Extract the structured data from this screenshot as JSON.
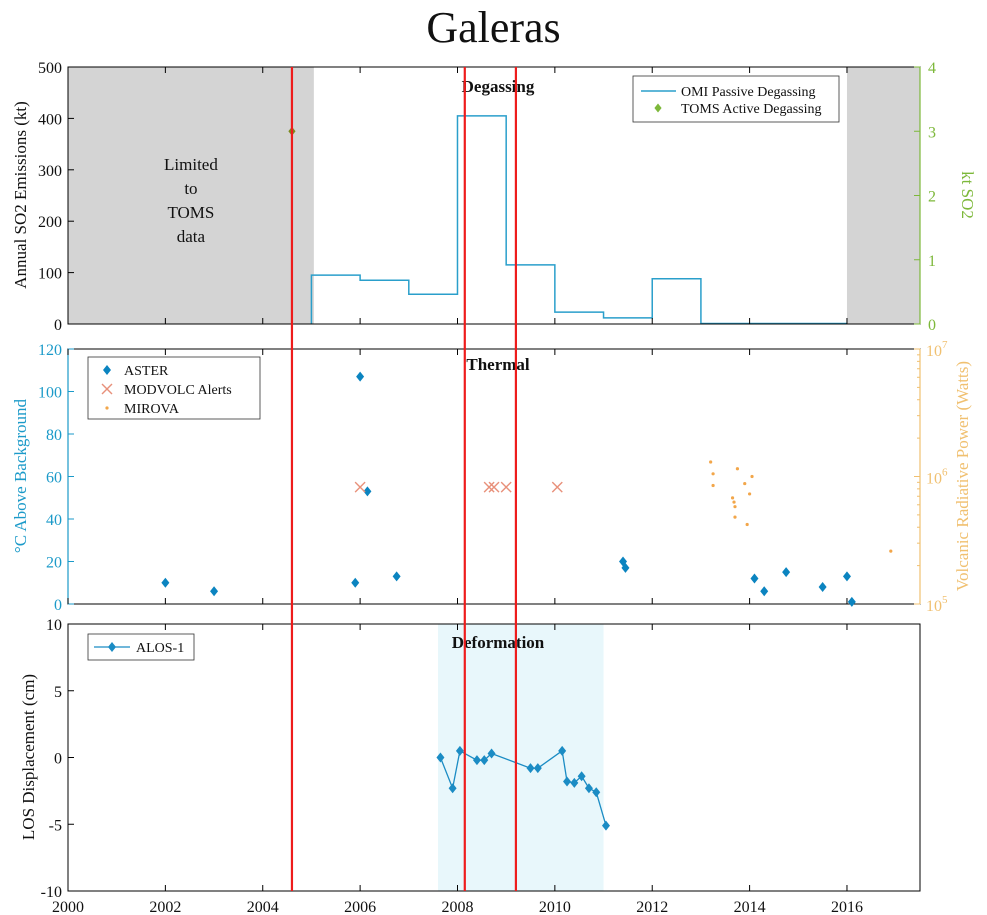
{
  "title": "Galeras",
  "colors": {
    "axis": "#000000",
    "omi": "#2a9fcb",
    "toms": "#7a8a1e",
    "toms_legend": "#7db83a",
    "right_axis_top": "#7db83a",
    "aster": "#0b84c0",
    "modvolc": "#e8907a",
    "mirova": "#f2a64a",
    "right_axis_mid": "#f0c070",
    "left_axis_mid": "#1b9ac9",
    "alos": "#1b8cc4",
    "gray": "#d4d4d4",
    "deform_band": "#e8f7fb",
    "red": "#ee1c1c"
  },
  "x_axis": {
    "range": [
      2000,
      2017.5
    ],
    "ticks": [
      "2000",
      "2002",
      "2004",
      "2006",
      "2008",
      "2010",
      "2012",
      "2014",
      "2016"
    ]
  },
  "red_lines": [
    2004.6,
    2008.15,
    2009.2
  ],
  "chart_data": [
    {
      "type": "line",
      "label": "Degassing",
      "ylabel": "Annual SO2 Emissions (kt)",
      "ylim": [
        0,
        500
      ],
      "yticks": [
        "0",
        "100",
        "200",
        "300",
        "400",
        "500"
      ],
      "y2label": "kt SO2",
      "y2lim": [
        0,
        4
      ],
      "y2ticks": [
        "0",
        "1",
        "2",
        "3",
        "4"
      ],
      "shaded_regions": [
        [
          2000,
          2005.05
        ],
        [
          2016,
          2017.5
        ]
      ],
      "shaded_text": "Limited\nto\nTOMS\ndata",
      "legend": [
        "OMI Passive Degassing",
        "TOMS Active Degassing"
      ],
      "series": [
        {
          "name": "OMI Passive Degassing",
          "step_x": [
            2005,
            2006,
            2007,
            2008,
            2009,
            2010,
            2011,
            2012,
            2013,
            2016
          ],
          "step_y": [
            95,
            85,
            58,
            405,
            115,
            23,
            12,
            88,
            1
          ]
        },
        {
          "name": "TOMS Active Degassing",
          "axis": "right",
          "points": [
            [
              2004.6,
              3.0
            ]
          ]
        }
      ]
    },
    {
      "type": "scatter",
      "label": "Thermal",
      "ylabel": "°C Above Background",
      "ylim": [
        0,
        120
      ],
      "yticks": [
        "0",
        "20",
        "40",
        "60",
        "80",
        "100",
        "120"
      ],
      "y2label": "Volcanic Radiative Power (Watts)",
      "y2scale": "log",
      "y2lim": [
        100000,
        10000000
      ],
      "legend": [
        "ASTER",
        "MODVOLC Alerts",
        "MIROVA"
      ],
      "series": [
        {
          "name": "ASTER",
          "points": [
            [
              2002,
              10
            ],
            [
              2003,
              6
            ],
            [
              2005.9,
              10
            ],
            [
              2006,
              107
            ],
            [
              2006.15,
              53
            ],
            [
              2006.75,
              13
            ],
            [
              2011.4,
              20
            ],
            [
              2011.45,
              17
            ],
            [
              2014.1,
              12
            ],
            [
              2014.3,
              6
            ],
            [
              2014.75,
              15
            ],
            [
              2015.5,
              8
            ],
            [
              2016,
              13
            ],
            [
              2016.1,
              1
            ]
          ]
        },
        {
          "name": "MODVOLC Alerts",
          "points": [
            [
              2006,
              55
            ],
            [
              2008.65,
              55
            ],
            [
              2008.75,
              55
            ],
            [
              2009,
              55
            ],
            [
              2010.05,
              55
            ]
          ]
        },
        {
          "name": "MIROVA",
          "axis": "right",
          "points": [
            [
              2013.2,
              1300000
            ],
            [
              2013.25,
              1050000
            ],
            [
              2013.25,
              850000
            ],
            [
              2013.65,
              680000
            ],
            [
              2013.68,
              630000
            ],
            [
              2013.7,
              580000
            ],
            [
              2013.75,
              1150000
            ],
            [
              2013.7,
              480000
            ],
            [
              2013.9,
              880000
            ],
            [
              2013.95,
              420000
            ],
            [
              2014.0,
              730000
            ],
            [
              2014.05,
              1000000
            ],
            [
              2016.9,
              260000
            ]
          ]
        }
      ]
    },
    {
      "type": "line",
      "label": "Deformation",
      "ylabel": "LOS Displacement (cm)",
      "ylim": [
        -10,
        10
      ],
      "yticks": [
        "-10",
        "-5",
        "0",
        "5",
        "10"
      ],
      "shaded_regions": [
        [
          2007.6,
          2011
        ]
      ],
      "legend": [
        "ALOS-1"
      ],
      "series": [
        {
          "name": "ALOS-1",
          "points": [
            [
              2007.65,
              0.0
            ],
            [
              2007.9,
              -2.3
            ],
            [
              2008.05,
              0.5
            ],
            [
              2008.4,
              -0.2
            ],
            [
              2008.55,
              -0.2
            ],
            [
              2008.7,
              0.3
            ],
            [
              2009.5,
              -0.8
            ],
            [
              2009.65,
              -0.8
            ],
            [
              2010.15,
              0.5
            ],
            [
              2010.25,
              -1.8
            ],
            [
              2010.4,
              -1.9
            ],
            [
              2010.55,
              -1.4
            ],
            [
              2010.7,
              -2.3
            ],
            [
              2010.85,
              -2.6
            ],
            [
              2011.05,
              -5.1
            ]
          ]
        }
      ]
    }
  ]
}
